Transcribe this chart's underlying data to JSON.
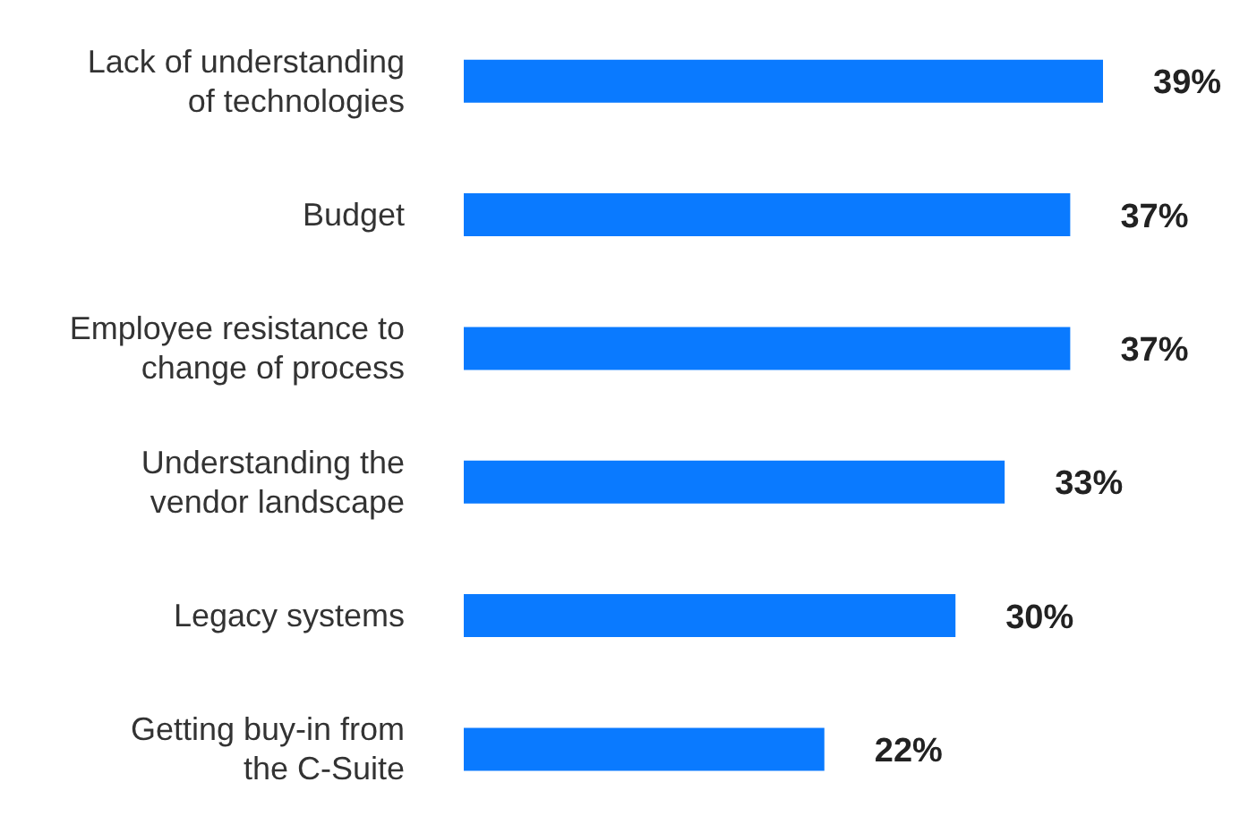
{
  "chart_data": {
    "type": "bar",
    "orientation": "horizontal",
    "categories": [
      "Lack of understanding of technologies",
      "Budget",
      "Employee resistance to change of process",
      "Understanding the vendor landscape",
      "Legacy systems",
      "Getting buy-in from the C-Suite"
    ],
    "values": [
      39,
      37,
      37,
      33,
      30,
      22
    ],
    "color": "#0a7aff",
    "data_labels": true,
    "value_labels": [
      "39%",
      "37%",
      "37%",
      "33%",
      "30%",
      "22%"
    ],
    "grid": false,
    "legend": false
  }
}
